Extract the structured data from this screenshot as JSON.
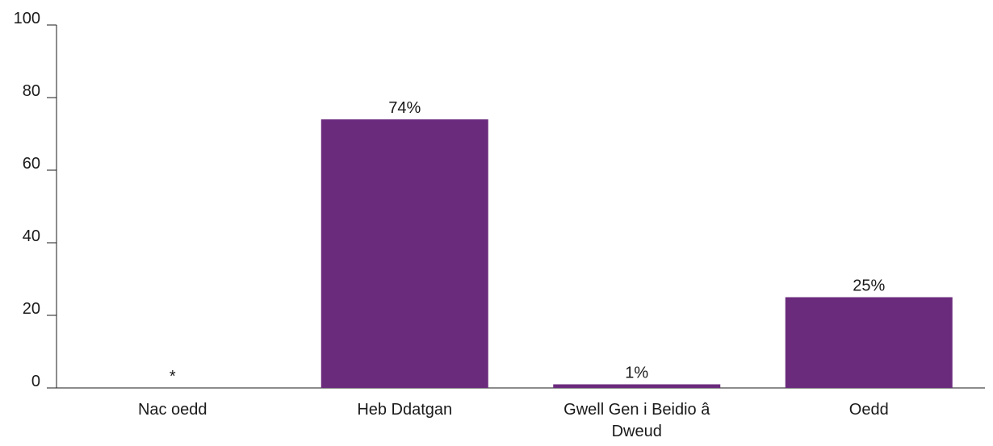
{
  "chart_data": {
    "type": "bar",
    "categories": [
      "Nac oedd",
      "Heb Ddatgan",
      "Gwell Gen i Beidio â Dweud",
      "Oedd"
    ],
    "values": [
      0,
      74,
      1,
      25
    ],
    "value_labels": [
      "*",
      "74%",
      "1%",
      "25%"
    ],
    "color": "#6b2b7d",
    "ylim": [
      0,
      100
    ],
    "yticks": [
      0,
      20,
      40,
      60,
      80,
      100
    ]
  }
}
